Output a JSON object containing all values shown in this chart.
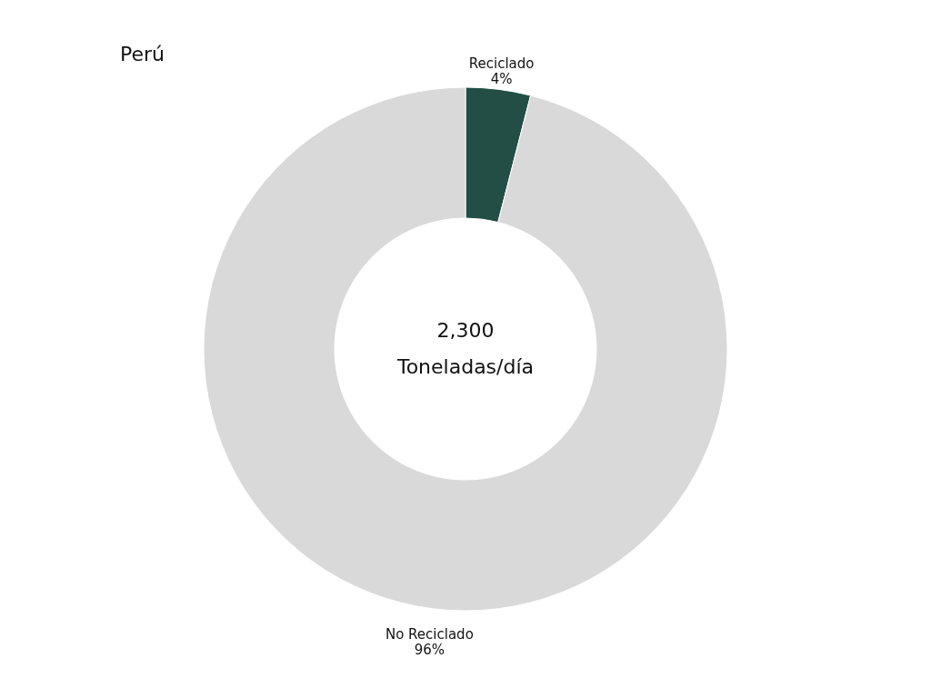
{
  "chart_data": {
    "type": "donut",
    "title": "Perú",
    "categories": [
      "Reciclado",
      "No Reciclado"
    ],
    "values": [
      4,
      96
    ],
    "colors": [
      "#234e45",
      "#d9d9d9"
    ],
    "value_labels": [
      "4%",
      "96%"
    ],
    "annotations": [
      "2,300",
      "Toneladas/día"
    ]
  }
}
